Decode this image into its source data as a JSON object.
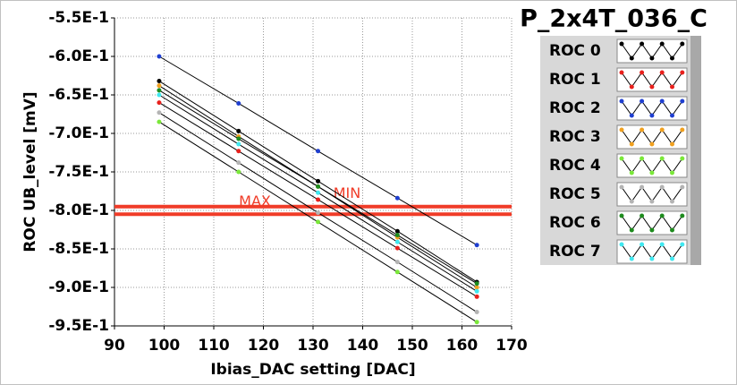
{
  "chart_data": {
    "type": "line",
    "title": "P_2x4T_036_C",
    "x_label": "Ibias_DAC setting [DAC]",
    "y_label": "ROC UB_level [mV]",
    "x": [
      99,
      115,
      131,
      147,
      163
    ],
    "series": [
      {
        "name": "ROC 0",
        "color": "#000000",
        "values": [
          -0.632,
          -0.697,
          -0.762,
          -0.827,
          -0.893
        ]
      },
      {
        "name": "ROC 1",
        "color": "#e8201c",
        "values": [
          -0.66,
          -0.723,
          -0.786,
          -0.849,
          -0.912
        ]
      },
      {
        "name": "ROC 2",
        "color": "#1f3fd0",
        "values": [
          -0.6,
          -0.661,
          -0.723,
          -0.784,
          -0.845
        ]
      },
      {
        "name": "ROC 3",
        "color": "#f0a020",
        "values": [
          -0.638,
          -0.704,
          -0.769,
          -0.835,
          -0.9
        ]
      },
      {
        "name": "ROC 4",
        "color": "#7be83a",
        "values": [
          -0.685,
          -0.75,
          -0.815,
          -0.88,
          -0.945
        ]
      },
      {
        "name": "ROC 5",
        "color": "#b4b4b4",
        "values": [
          -0.673,
          -0.738,
          -0.803,
          -0.867,
          -0.932
        ]
      },
      {
        "name": "ROC 6",
        "color": "#1e8c1e",
        "values": [
          -0.644,
          -0.707,
          -0.769,
          -0.832,
          -0.895
        ]
      },
      {
        "name": "ROC 7",
        "color": "#40e8f0",
        "values": [
          -0.65,
          -0.714,
          -0.777,
          -0.841,
          -0.905
        ]
      }
    ],
    "line_color": "#000000",
    "limits": [
      {
        "label": "MIN",
        "value": -0.795,
        "color": "#f03c28"
      },
      {
        "label": "MAX",
        "value": -0.805,
        "color": "#f03c28"
      }
    ],
    "xlim": [
      90,
      170
    ],
    "xticks": [
      90,
      100,
      110,
      120,
      130,
      140,
      150,
      160,
      170
    ],
    "ylim": [
      -0.95,
      -0.55
    ],
    "yticks": [
      {
        "value": -0.95,
        "label": "-9.5E-1"
      },
      {
        "value": -0.9,
        "label": "-9.0E-1"
      },
      {
        "value": -0.85,
        "label": "-8.5E-1"
      },
      {
        "value": -0.8,
        "label": "-8.0E-1"
      },
      {
        "value": -0.75,
        "label": "-7.5E-1"
      },
      {
        "value": -0.7,
        "label": "-7.0E-1"
      },
      {
        "value": -0.65,
        "label": "-6.5E-1"
      },
      {
        "value": -0.6,
        "label": "-6.0E-1"
      },
      {
        "value": -0.55,
        "label": "-5.5E-1"
      }
    ],
    "grid": true
  }
}
